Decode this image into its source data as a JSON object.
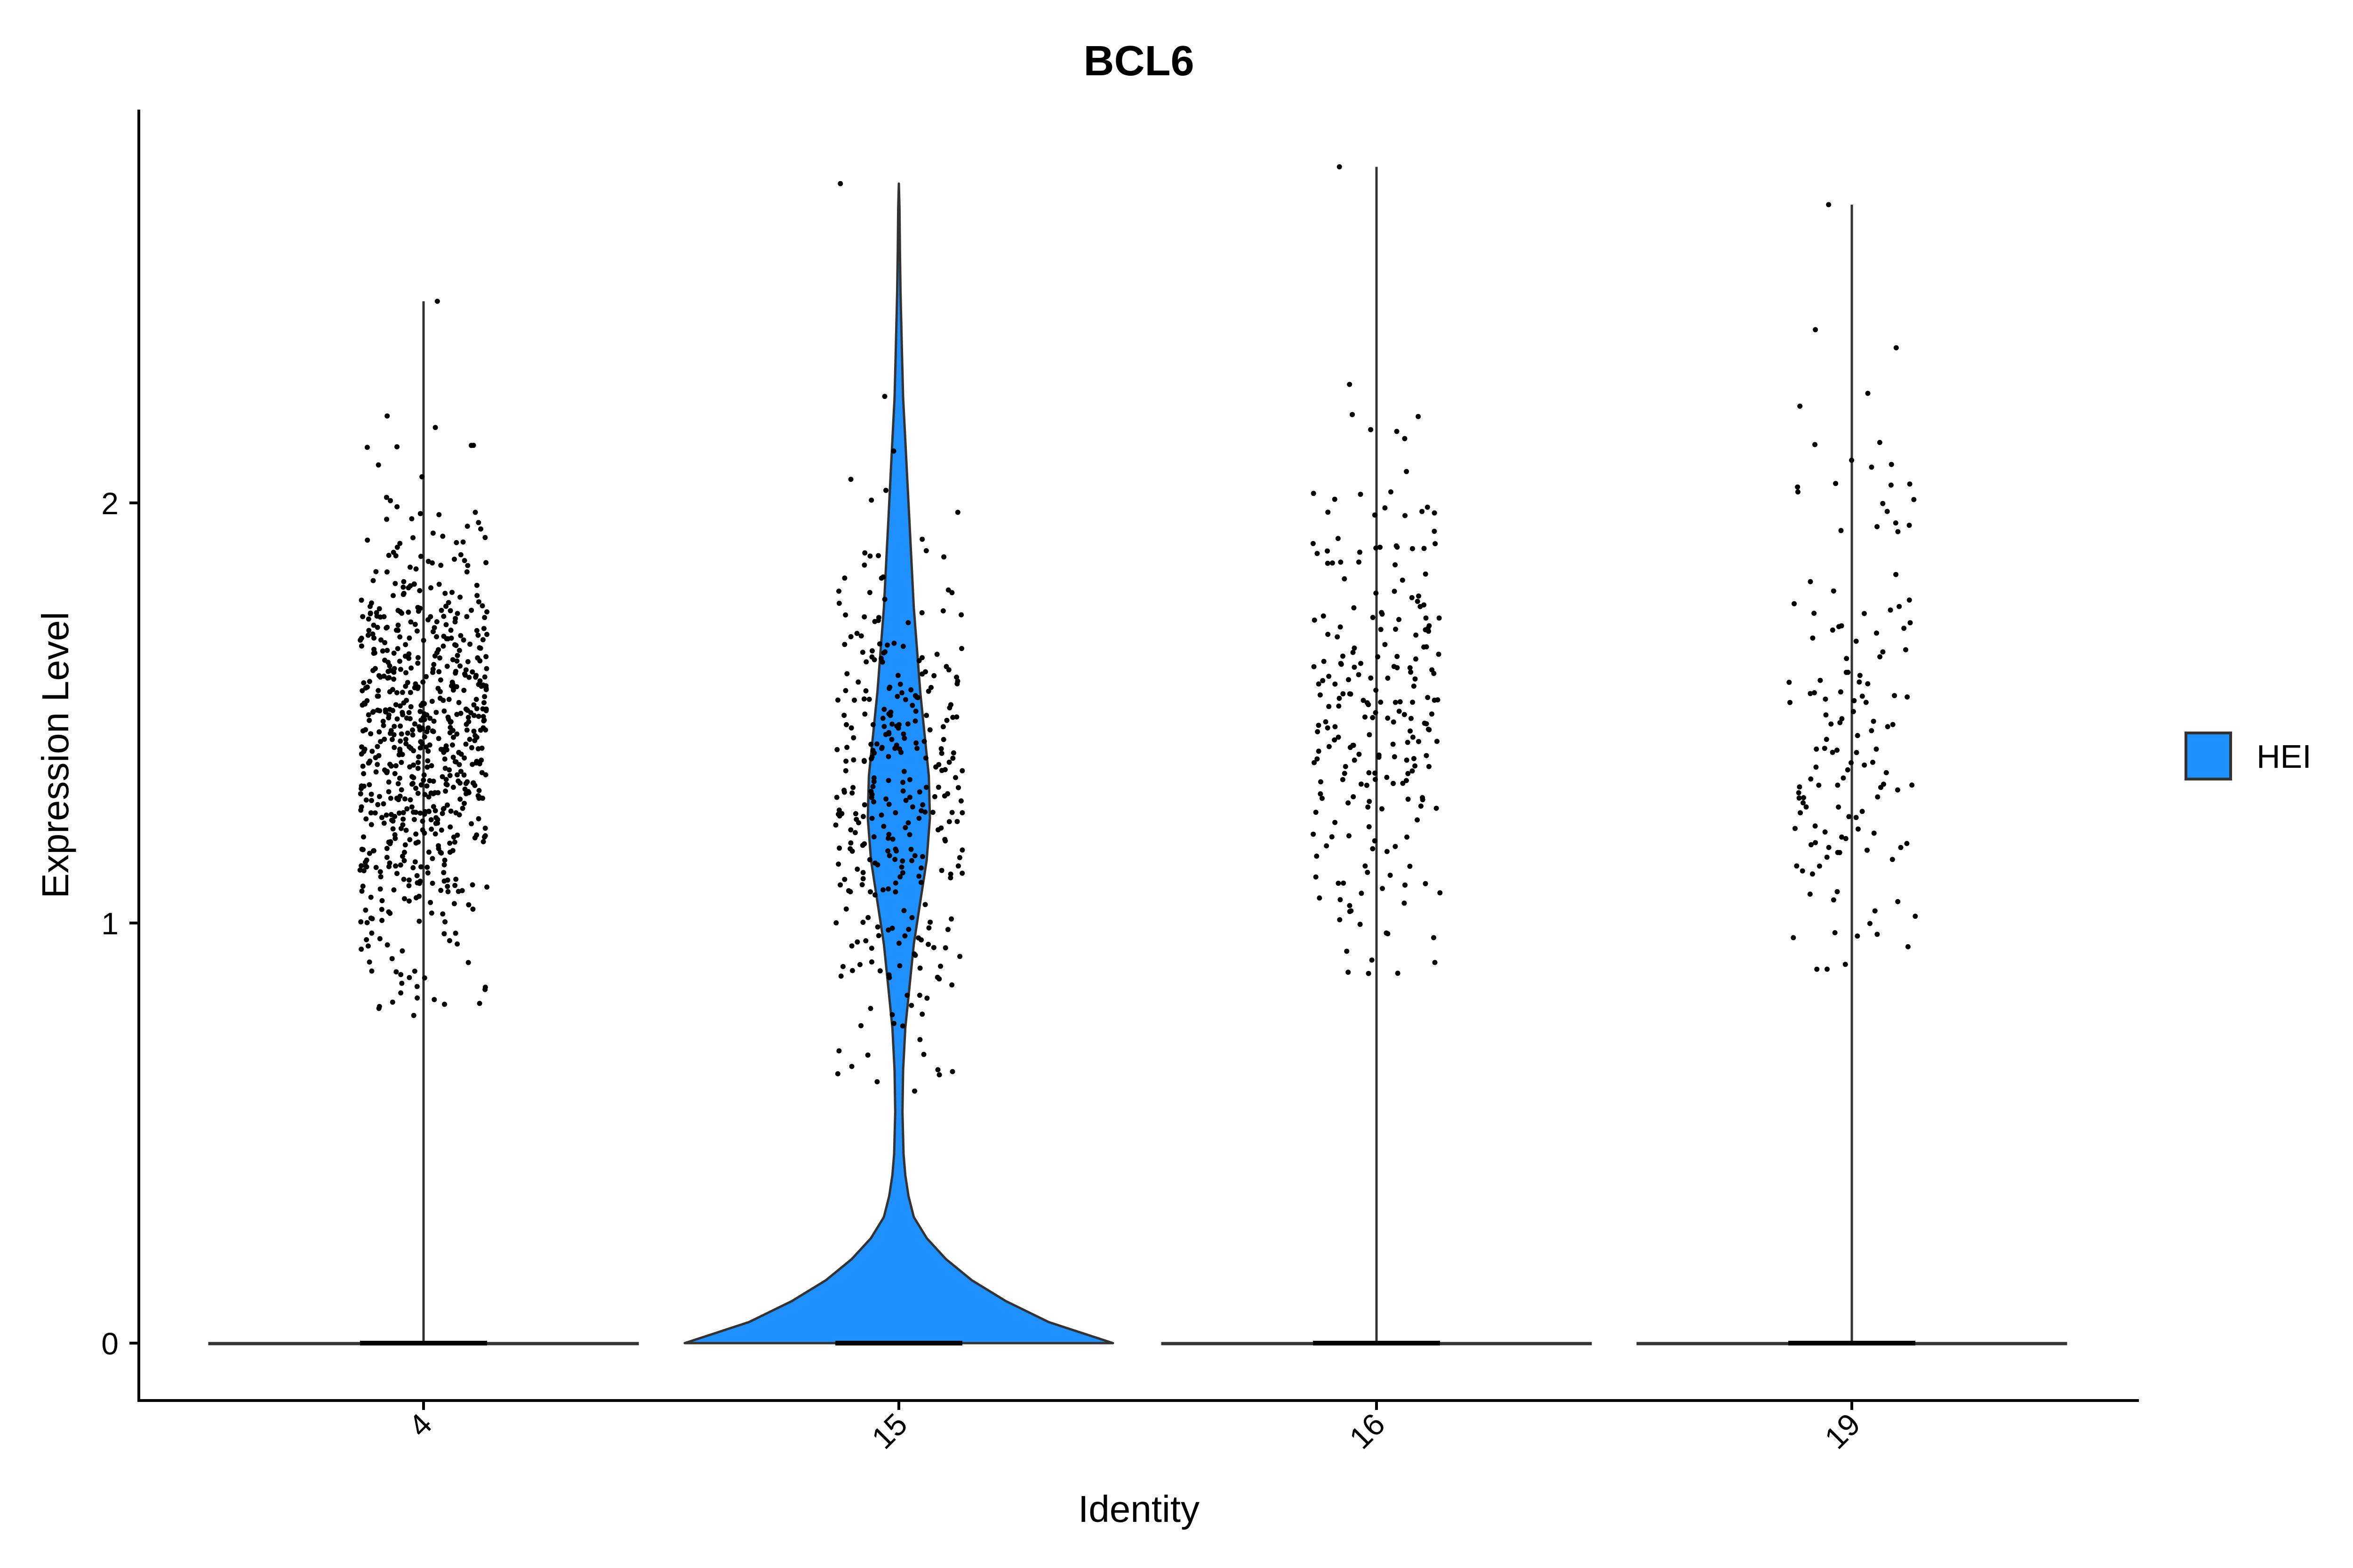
{
  "chart_data": {
    "type": "violin",
    "title": "BCL6",
    "xlabel": "Identity",
    "ylabel": "Expression Level",
    "categories": [
      "4",
      "15",
      "16",
      "19"
    ],
    "x_tick_rotation_deg": 45,
    "ylim": [
      -0.14,
      2.92
    ],
    "yticks": [
      0,
      1,
      2
    ],
    "legend": {
      "position": "right",
      "entries": [
        {
          "name": "HEI",
          "color": "#1E90FF"
        }
      ]
    },
    "grid": false,
    "fill_color": "#1E90FF",
    "groups": [
      {
        "identity": "4",
        "max": 2.48,
        "filled": false,
        "nonzero_points": 700,
        "nonzero_range": [
          0.78,
          2.48
        ],
        "nonzero_center": 1.45,
        "nonzero_spread": 0.27
      },
      {
        "identity": "15",
        "max": 2.76,
        "filled": true,
        "nonzero_points": 330,
        "nonzero_range": [
          0.6,
          2.76
        ],
        "nonzero_center": 1.3,
        "nonzero_spread": 0.33
      },
      {
        "identity": "16",
        "max": 2.8,
        "filled": false,
        "nonzero_points": 230,
        "nonzero_range": [
          0.88,
          2.8
        ],
        "nonzero_center": 1.5,
        "nonzero_spread": 0.3
      },
      {
        "identity": "19",
        "max": 2.71,
        "filled": false,
        "nonzero_points": 140,
        "nonzero_range": [
          0.89,
          2.71
        ],
        "nonzero_center": 1.45,
        "nonzero_spread": 0.33
      }
    ],
    "violin_15_profile": [
      [
        0.0,
        1.0
      ],
      [
        0.05,
        0.7
      ],
      [
        0.1,
        0.5
      ],
      [
        0.15,
        0.34
      ],
      [
        0.2,
        0.22
      ],
      [
        0.25,
        0.13
      ],
      [
        0.3,
        0.07
      ],
      [
        0.35,
        0.045
      ],
      [
        0.4,
        0.03
      ],
      [
        0.45,
        0.022
      ],
      [
        0.55,
        0.017
      ],
      [
        0.65,
        0.02
      ],
      [
        0.75,
        0.03
      ],
      [
        0.85,
        0.05
      ],
      [
        0.95,
        0.07
      ],
      [
        1.05,
        0.1
      ],
      [
        1.15,
        0.13
      ],
      [
        1.25,
        0.145
      ],
      [
        1.35,
        0.14
      ],
      [
        1.45,
        0.12
      ],
      [
        1.55,
        0.1
      ],
      [
        1.65,
        0.085
      ],
      [
        1.75,
        0.07
      ],
      [
        1.85,
        0.06
      ],
      [
        1.95,
        0.05
      ],
      [
        2.05,
        0.04
      ],
      [
        2.15,
        0.03
      ],
      [
        2.25,
        0.02
      ],
      [
        2.35,
        0.015
      ],
      [
        2.5,
        0.008
      ],
      [
        2.6,
        0.005
      ],
      [
        2.7,
        0.003
      ],
      [
        2.76,
        0.0
      ]
    ]
  }
}
